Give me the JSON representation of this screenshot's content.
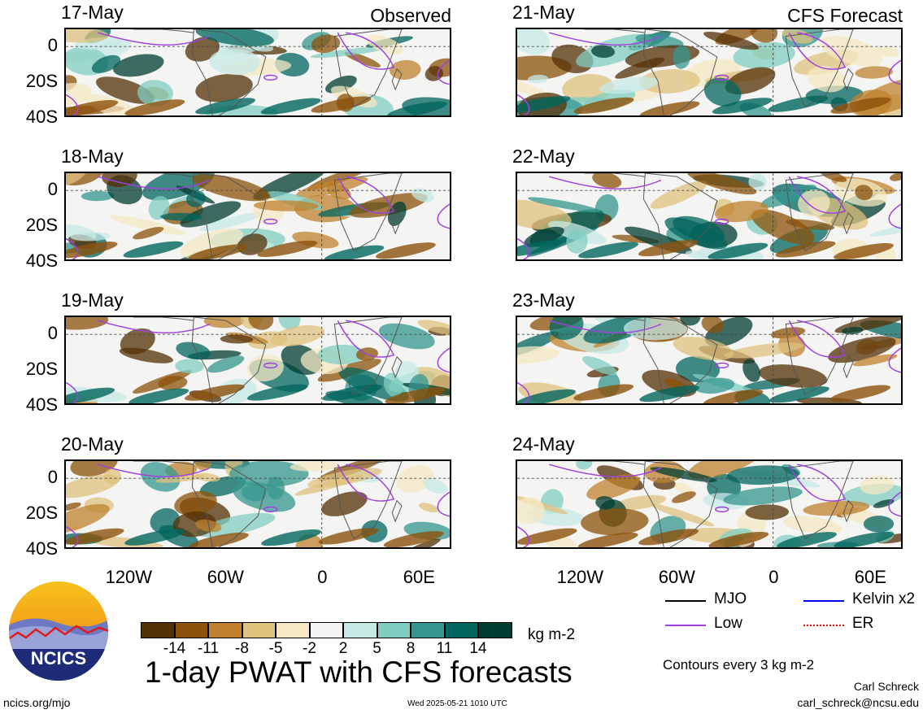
{
  "columns": [
    {
      "title": "Observed",
      "dates": [
        "17-May",
        "18-May",
        "19-May",
        "20-May"
      ]
    },
    {
      "title": "CFS Forecast",
      "dates": [
        "21-May",
        "22-May",
        "23-May",
        "24-May"
      ]
    }
  ],
  "y_ticks": [
    "0",
    "20S",
    "40S"
  ],
  "x_ticks": [
    "120W",
    "60W",
    "0",
    "60E"
  ],
  "colorbar": {
    "labels": [
      "-14",
      "-11",
      "-8",
      "-5",
      "-2",
      "2",
      "5",
      "8",
      "11",
      "14"
    ],
    "unit": "kg m-2",
    "colors": [
      "#543005",
      "#8c510a",
      "#bf812d",
      "#dfc27d",
      "#f6e8c3",
      "#f5f5f5",
      "#c7eae5",
      "#80cdc1",
      "#35978f",
      "#01665e",
      "#003c30"
    ]
  },
  "legend": [
    {
      "label": "MJO",
      "color": "#000000"
    },
    {
      "label": "Kelvin x2",
      "color": "#0000ff"
    },
    {
      "label": "Low",
      "color": "#a040e0"
    },
    {
      "label": "ER",
      "color": "#ff0000"
    }
  ],
  "contour_note": "Contours every 3 kg m-2",
  "main_title": "1-day PWAT with CFS forecasts",
  "logo_text": "NCICS",
  "footer": {
    "site": "ncics.org/mjo",
    "timestamp": "Wed 2025-05-21 1010 UTC",
    "author": "Carl Schreck",
    "email": "carl_schreck@ncsu.edu"
  },
  "chart_data": {
    "type": "heatmap",
    "title": "1-day PWAT with CFS forecasts",
    "units": "kg m-2",
    "x_axis": {
      "ticks": [
        "120W",
        "60W",
        "0",
        "60E"
      ],
      "range": [
        -160,
        80
      ]
    },
    "y_axis": {
      "ticks": [
        "0",
        "20S",
        "40S"
      ],
      "range": [
        -40,
        10
      ]
    },
    "panels": [
      "17-May",
      "18-May",
      "19-May",
      "20-May",
      "21-May",
      "22-May",
      "23-May",
      "24-May"
    ],
    "color_levels": [
      -14,
      -11,
      -8,
      -5,
      -2,
      2,
      5,
      8,
      11,
      14
    ]
  }
}
